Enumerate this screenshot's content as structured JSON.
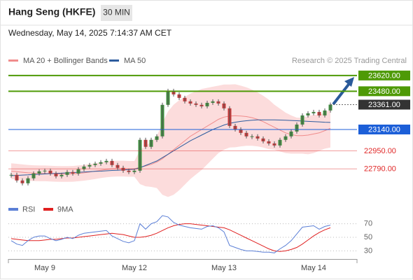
{
  "header": {
    "title": "Hang Seng (HKFE)",
    "interval": "30 MIN",
    "datetime": "Wednesday, May 14, 2025 7:14:37 AM CET"
  },
  "chart_data": [
    {
      "type": "candlestick",
      "credit": "Research © 2025 Trading Central",
      "ylim": [
        22580,
        23700
      ],
      "up_color": "#3f8f3f",
      "down_color": "#c83a3a",
      "close": [
        22737,
        22687,
        22662,
        22706,
        22749,
        22768,
        22774,
        22749,
        22724,
        22737,
        22762,
        22749,
        22787,
        22811,
        22824,
        22836,
        22849,
        22861,
        22824,
        22799,
        22774,
        22762,
        22774,
        23048,
        22986,
        23048,
        23079,
        23359,
        23483,
        23452,
        23421,
        23390,
        23371,
        23359,
        23346,
        23377,
        23390,
        23371,
        23328,
        23172,
        23141,
        23110,
        23079,
        23079,
        23060,
        23035,
        23016,
        22998,
        23048,
        23079,
        23122,
        23184,
        23265,
        23284,
        23296,
        23265,
        23309,
        23361
      ],
      "series": [
        {
          "name": "MA 20 + Bollinger Bands",
          "color": "#f08c8c",
          "band_color": "#fbd3d3",
          "values": [
            22770,
            22765,
            22760,
            22755,
            22752,
            22750,
            22750,
            22748,
            22746,
            22745,
            22745,
            22746,
            22750,
            22755,
            22762,
            22770,
            22778,
            22785,
            22790,
            22792,
            22792,
            22790,
            22790,
            22805,
            22815,
            22830,
            22850,
            22880,
            22920,
            22960,
            23000,
            23040,
            23080,
            23110,
            23140,
            23170,
            23200,
            23230,
            23250,
            23260,
            23262,
            23260,
            23255,
            23245,
            23230,
            23210,
            23185,
            23160,
            23135,
            23110,
            23095,
            23085,
            23085,
            23090,
            23100,
            23110,
            23130,
            23150
          ],
          "upper": [
            22840,
            22835,
            22830,
            22825,
            22822,
            22820,
            22820,
            22818,
            22816,
            22815,
            22815,
            22816,
            22820,
            22825,
            22832,
            22840,
            22848,
            22855,
            22860,
            22862,
            22862,
            22860,
            22860,
            22955,
            22995,
            23030,
            23080,
            23200,
            23300,
            23360,
            23400,
            23430,
            23460,
            23480,
            23500,
            23510,
            23520,
            23530,
            23540,
            23540,
            23542,
            23530,
            23515,
            23495,
            23470,
            23440,
            23405,
            23360,
            23325,
            23290,
            23265,
            23245,
            23245,
            23260,
            23270,
            23270,
            23290,
            23320
          ],
          "lower": [
            22700,
            22695,
            22690,
            22685,
            22682,
            22680,
            22680,
            22678,
            22676,
            22675,
            22675,
            22676,
            22680,
            22685,
            22692,
            22700,
            22708,
            22715,
            22720,
            22722,
            22722,
            22720,
            22720,
            22655,
            22635,
            22630,
            22620,
            22560,
            22540,
            22560,
            22600,
            22650,
            22700,
            22740,
            22780,
            22830,
            22880,
            22930,
            22960,
            22980,
            22982,
            22990,
            22995,
            22995,
            22990,
            22980,
            22965,
            22960,
            22945,
            22930,
            22925,
            22925,
            22925,
            22920,
            22930,
            22950,
            22970,
            22980
          ]
        },
        {
          "name": "MA 50",
          "color": "#2e5c9e",
          "values": [
            22730,
            22732,
            22735,
            22737,
            22740,
            22742,
            22745,
            22748,
            22750,
            22752,
            22755,
            22757,
            22760,
            22762,
            22765,
            22768,
            22770,
            22773,
            22776,
            22778,
            22781,
            22784,
            22787,
            22800,
            22820,
            22840,
            22860,
            22890,
            22920,
            22950,
            22980,
            23010,
            23040,
            23065,
            23090,
            23115,
            23140,
            23160,
            23180,
            23195,
            23205,
            23212,
            23218,
            23222,
            23225,
            23226,
            23226,
            23225,
            23224,
            23222,
            23220,
            23218,
            23215,
            23212,
            23210,
            23208,
            23205,
            23203
          ]
        }
      ],
      "levels": [
        {
          "value": 23620,
          "label": "23620.00",
          "color": "#4e9a06",
          "style": "box"
        },
        {
          "value": 23480,
          "label": "23480.00",
          "color": "#4e9a06",
          "style": "box"
        },
        {
          "value": 23361,
          "label": "23361.00",
          "color": "#333333",
          "style": "current"
        },
        {
          "value": 23140,
          "label": "23140.00",
          "color": "#1c5fd8",
          "style": "box"
        },
        {
          "value": 22950,
          "label": "22950.00",
          "color": "#e02828",
          "style": "text"
        },
        {
          "value": 22790,
          "label": "22790.00",
          "color": "#e02828",
          "style": "text"
        }
      ]
    },
    {
      "type": "line",
      "categories": [
        null,
        null,
        null,
        null,
        null,
        null,
        "May 9",
        null,
        null,
        null,
        null,
        null,
        null,
        null,
        null,
        null,
        null,
        null,
        null,
        null,
        null,
        null,
        "May 12",
        null,
        null,
        null,
        null,
        null,
        null,
        null,
        null,
        null,
        null,
        null,
        null,
        null,
        null,
        null,
        "May 13",
        null,
        null,
        null,
        null,
        null,
        null,
        null,
        null,
        null,
        null,
        null,
        null,
        null,
        null,
        null,
        "May 14",
        null,
        null,
        null
      ],
      "ylim": [
        18,
        82
      ],
      "yticks": [
        30,
        50,
        70
      ],
      "series": [
        {
          "name": "RSI",
          "color": "#5b7fd6",
          "values": [
            45,
            40,
            38,
            45,
            50,
            52,
            52,
            48,
            45,
            47,
            50,
            48,
            53,
            56,
            57,
            58,
            59,
            60,
            52,
            48,
            44,
            42,
            45,
            70,
            62,
            70,
            73,
            82,
            80,
            72,
            68,
            66,
            64,
            63,
            62,
            66,
            67,
            64,
            58,
            38,
            35,
            32,
            30,
            30,
            29,
            28,
            28,
            27,
            33,
            38,
            45,
            55,
            65,
            66,
            67,
            62,
            66,
            68
          ]
        },
        {
          "name": "9MA",
          "color": "#e02020",
          "values": [
            48,
            47,
            46,
            45,
            45,
            45,
            46,
            47,
            47,
            48,
            49,
            49,
            50,
            51,
            52,
            53,
            54,
            55,
            56,
            55,
            54,
            52,
            50,
            50,
            51,
            53,
            56,
            60,
            64,
            67,
            69,
            70,
            70,
            69,
            68,
            67,
            66,
            65,
            64,
            61,
            57,
            53,
            49,
            45,
            41,
            37,
            33,
            30,
            29,
            30,
            32,
            35,
            40,
            46,
            52,
            57,
            61,
            64
          ]
        }
      ]
    }
  ]
}
